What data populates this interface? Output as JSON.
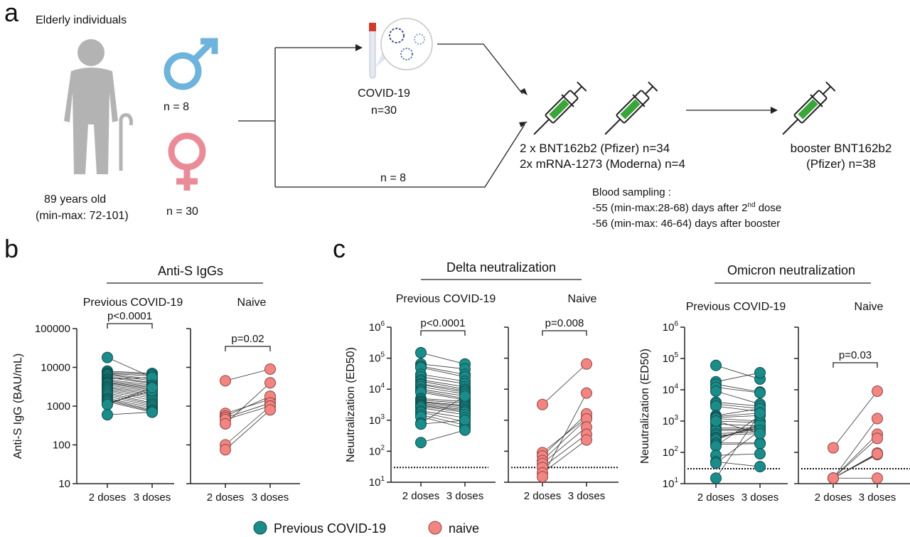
{
  "panel_a": {
    "letter": "a",
    "population_label": "Elderly individuals",
    "age_line1": "89 years old",
    "age_line2": "(min-max: 72-101)",
    "male_n": "n = 8",
    "female_n": "n = 30",
    "covid_label": "COVID-19",
    "covid_n": "n=30",
    "naive_n": "n = 8",
    "primary_line1": "2 x BNT162b2 (Pfizer) n=34",
    "primary_line2": "2x mRNA-1273 (Moderna) n=4",
    "booster_line1": "booster BNT162b2",
    "booster_line2": "(Pfizer) n=38",
    "sampling_title": "Blood sampling :",
    "sampling_line1_pre": "-55 (min-max:28-68) days after 2",
    "sampling_line1_sup": "nd",
    "sampling_line1_post": " dose",
    "sampling_line2": "-56 (min-max: 46-64) days after booster",
    "colors": {
      "male": "#6db3dc",
      "female": "#ea8c98",
      "silhouette": "#b3b3b3",
      "syringe_fill": "#3aa63a"
    }
  },
  "panel_b": {
    "letter": "b"
  },
  "panel_c": {
    "letter": "c"
  },
  "legend": {
    "items": [
      {
        "label": "Previous COVID-19",
        "color": "#1a8c8a"
      },
      {
        "label": "naive",
        "color": "#f28481"
      }
    ]
  },
  "chart_data": [
    {
      "type": "scatter",
      "title": "Anti-S IgGs",
      "ylabel": "Anti-S IgG (BAU/mL)",
      "yscale": "log",
      "ylim": [
        10,
        100000
      ],
      "tick_labels": [
        "10",
        "100",
        "1000",
        "10000",
        "100000"
      ],
      "tick_values": [
        10,
        100,
        1000,
        10000,
        100000
      ],
      "tick_style": "plain",
      "categories": [
        "2 doses",
        "3 doses"
      ],
      "threshold": null,
      "groups": [
        {
          "name": "Previous COVID-19",
          "color": "#1a8c8a",
          "p_value": "p<0.0001",
          "dose2": [
            18000,
            8000,
            7500,
            7000,
            6800,
            6500,
            6000,
            5500,
            5000,
            4800,
            4500,
            4200,
            4000,
            3800,
            3500,
            3200,
            3000,
            2800,
            2600,
            2400,
            2200,
            2000,
            1800,
            1600,
            1500,
            1400,
            1300,
            1200,
            1100,
            600
          ],
          "dose3": [
            5500,
            7000,
            6500,
            6000,
            5000,
            4500,
            4000,
            3800,
            5500,
            3500,
            3200,
            3000,
            2800,
            2600,
            2400,
            2200,
            2000,
            1800,
            1600,
            1400,
            1200,
            1100,
            1000,
            900,
            800,
            750,
            700,
            2500,
            3000,
            700
          ]
        },
        {
          "name": "Naive",
          "color": "#f28481",
          "p_value": "p=0.02",
          "dose2": [
            4500,
            650,
            550,
            500,
            450,
            350,
            100,
            75
          ],
          "dose3": [
            9000,
            1500,
            1800,
            1200,
            1000,
            4000,
            1000,
            800
          ]
        }
      ]
    },
    {
      "type": "scatter",
      "title": "Delta neutralization",
      "ylabel": "Neuutralization (ED50)",
      "yscale": "log",
      "ylim": [
        10,
        1000000
      ],
      "tick_labels": [
        "1",
        "2",
        "3",
        "4",
        "5",
        "6"
      ],
      "tick_values": [
        10,
        100,
        1000,
        10000,
        100000,
        1000000
      ],
      "tick_style": "power-of-10",
      "categories": [
        "2 doses",
        "3 doses"
      ],
      "threshold": 30,
      "groups": [
        {
          "name": "Previous COVID-19",
          "color": "#1a8c8a",
          "p_value": "p<0.0001",
          "dose2": [
            150000,
            65000,
            55000,
            50000,
            30000,
            25000,
            20000,
            18000,
            15000,
            14000,
            12000,
            10000,
            9000,
            8000,
            5000,
            4500,
            4000,
            3800,
            3500,
            3200,
            3000,
            2800,
            2500,
            2000,
            1800,
            1500,
            1300,
            800,
            750,
            190
          ],
          "dose3": [
            65000,
            45000,
            30000,
            25000,
            18000,
            15000,
            12000,
            10000,
            9000,
            8000,
            7000,
            6000,
            5000,
            4500,
            4000,
            3500,
            3000,
            2800,
            2500,
            2200,
            2000,
            1800,
            1500,
            1200,
            900,
            700,
            550,
            6000,
            1000,
            480
          ]
        },
        {
          "name": "Naive",
          "color": "#f28481",
          "p_value": "p=0.008",
          "dose2": [
            3200,
            90,
            70,
            50,
            40,
            30,
            20,
            15
          ],
          "dose3": [
            65000,
            1200,
            1600,
            1100,
            600,
            350,
            230,
            7500
          ]
        }
      ]
    },
    {
      "type": "scatter",
      "title": "Omicron neutralization",
      "ylabel": "Neuutralization (ED50)",
      "yscale": "log",
      "ylim": [
        10,
        1000000
      ],
      "tick_labels": [
        "1",
        "2",
        "3",
        "4",
        "5",
        "6"
      ],
      "tick_values": [
        10,
        100,
        1000,
        10000,
        100000,
        1000000
      ],
      "tick_style": "power-of-10",
      "categories": [
        "2 doses",
        "3 doses"
      ],
      "threshold": 30,
      "groups": [
        {
          "name": "Previous COVID-19",
          "color": "#1a8c8a",
          "p_value": "",
          "dose2": [
            60000,
            18000,
            15000,
            12000,
            9000,
            4000,
            3500,
            3000,
            1500,
            1400,
            1300,
            1200,
            1000,
            800,
            600,
            550,
            500,
            400,
            350,
            300,
            280,
            250,
            200,
            180,
            160,
            80,
            50,
            45,
            1000,
            15
          ],
          "dose3": [
            22000,
            35000,
            8500,
            8000,
            3500,
            3000,
            2500,
            2000,
            2500,
            1800,
            1500,
            1000,
            900,
            700,
            600,
            550,
            500,
            450,
            400,
            600,
            700,
            800,
            200,
            190,
            1500,
            90,
            35,
            500,
            400,
            1800
          ]
        },
        {
          "name": "Naive",
          "color": "#f28481",
          "p_value": "p=0.03",
          "dose2": [
            140,
            15,
            15,
            15,
            15,
            15,
            15,
            15
          ],
          "dose3": [
            9000,
            1200,
            380,
            280,
            95,
            85,
            90,
            15
          ]
        }
      ]
    }
  ]
}
